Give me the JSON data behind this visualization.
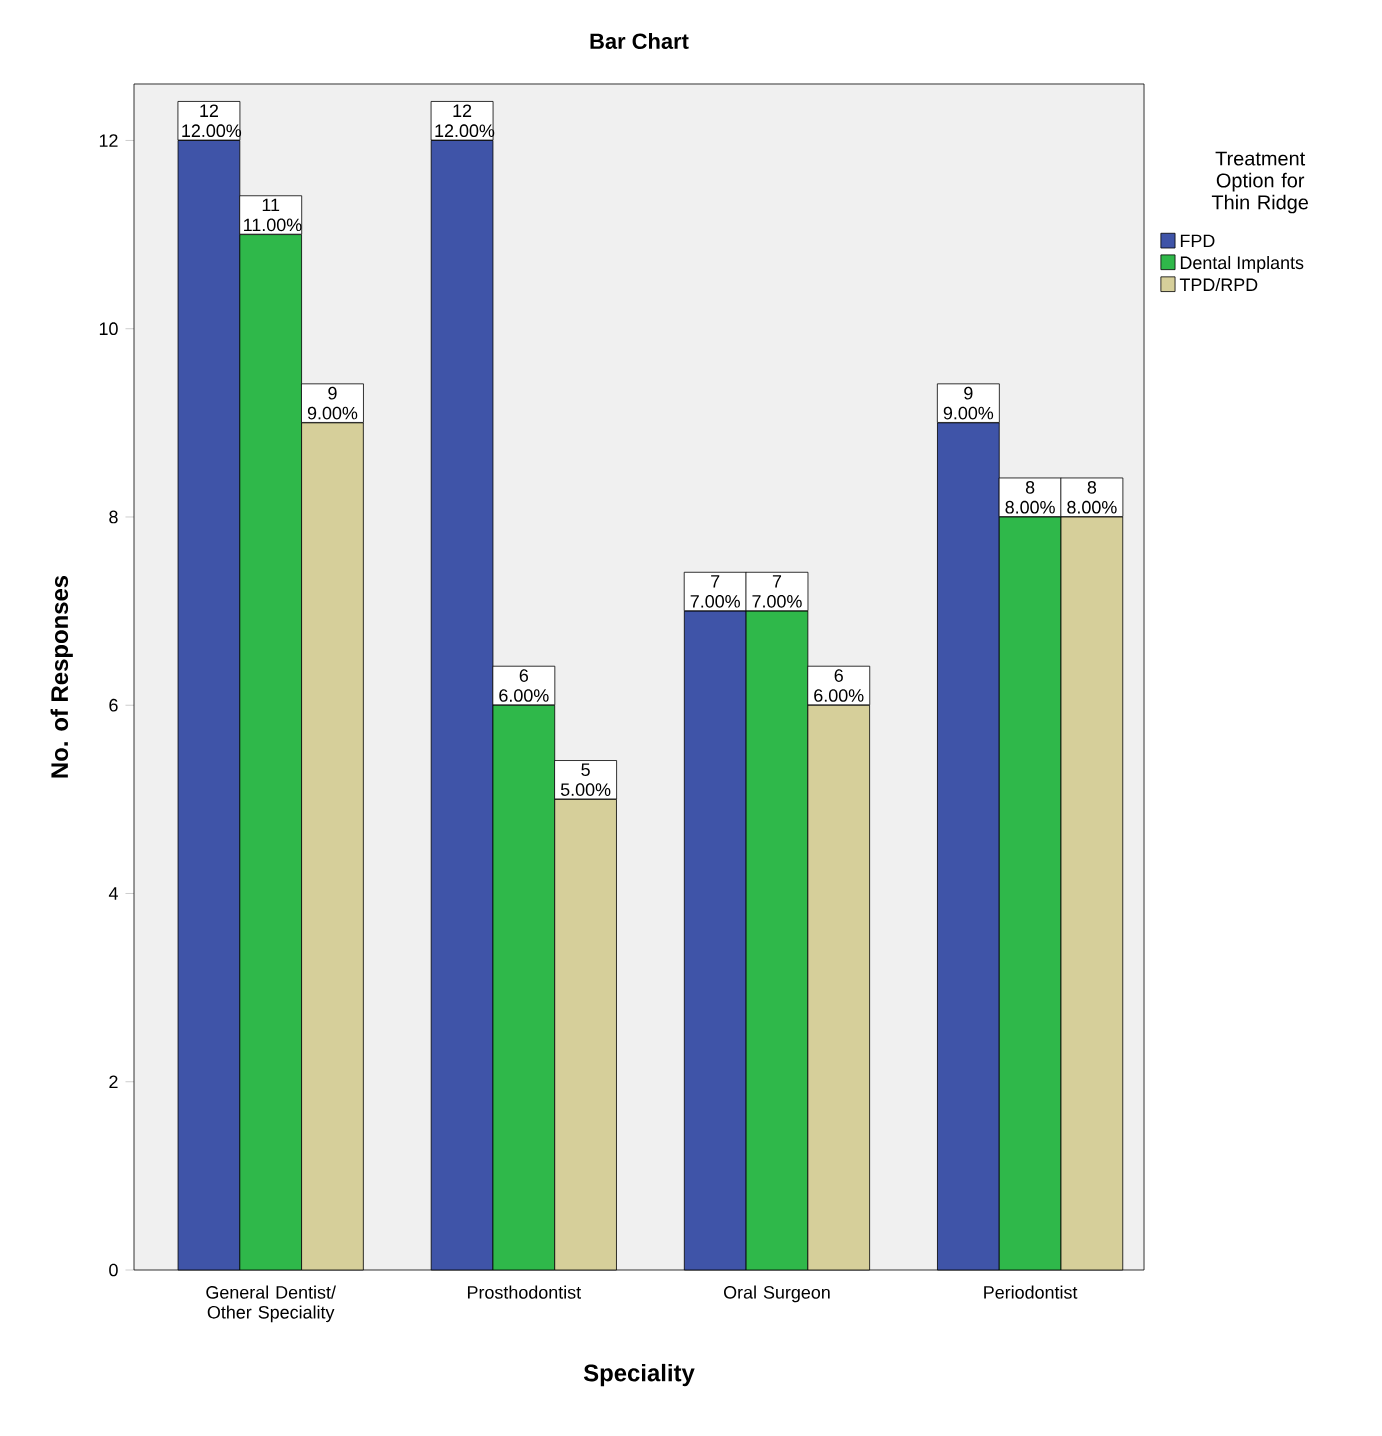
{
  "chart_data": {
    "type": "bar",
    "title": "Bar Chart",
    "xlabel": "Speciality",
    "ylabel": "No. of Responses",
    "legend_title": "Treatment Option for Thin Ridge",
    "categories": [
      "General Dentist/ Other Speciality",
      "Prosthodontist",
      "Oral Surgeon",
      "Periodontist"
    ],
    "series": [
      {
        "name": "FPD",
        "color": "#3f54a8",
        "values": [
          12,
          12,
          7,
          9
        ],
        "value_labels": [
          "12 12.00%",
          "12 12.00%",
          "7 7.00%",
          "9 9.00%"
        ]
      },
      {
        "name": "Dental Implants",
        "color": "#2fb84a",
        "values": [
          11,
          6,
          7,
          8
        ],
        "value_labels": [
          "11 11.00%",
          "6 6.00%",
          "7 7.00%",
          "8 8.00%"
        ]
      },
      {
        "name": "TPD/RPD",
        "color": "#d6cf9a",
        "values": [
          9,
          5,
          6,
          8
        ],
        "value_labels": [
          "9 9.00%",
          "5 5.00%",
          "6 6.00%",
          "8 8.00%"
        ]
      }
    ],
    "ylim": [
      0,
      12.6
    ],
    "yticks": [
      0,
      2,
      4,
      6,
      8,
      10,
      12
    ],
    "grid": false,
    "legend": "top right"
  }
}
